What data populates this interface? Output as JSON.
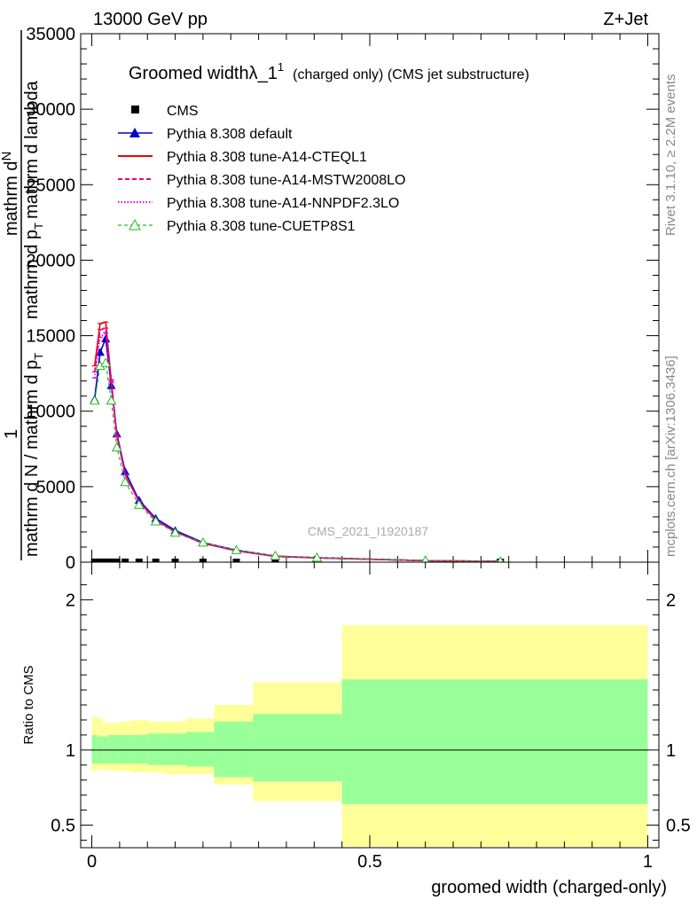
{
  "header": {
    "energy_label": "13000 GeV pp",
    "process_label": "Z+Jet"
  },
  "side_labels": {
    "rivet": "Rivet 3.1.10, ≥ 2.2M events",
    "mcplots": "mcplots.cern.ch [arXiv:1306.3436]"
  },
  "chart_data": [
    {
      "panel": "main",
      "type": "line",
      "title_main": "Groomed width",
      "title_lambda": "λ_1",
      "title_sup": "1",
      "title_suffix": "(charged only) (CMS jet substructure)",
      "ylabel_line1": "mathrm d",
      "ylabel_n": "N",
      "ylabel_line2": "mathrm d p",
      "ylabel_line2b": "mathrm d lambda",
      "ylabel_frac_num": "1",
      "ylabel_frac_den": "mathrm d N / mathrm d p",
      "ylabel_frac_den_b": "mathrm d p",
      "ylabel_t": "T",
      "ylim": [
        0,
        35000
      ],
      "xlim": [
        -0.02,
        1.02
      ],
      "yticks": [
        0,
        5000,
        10000,
        15000,
        20000,
        25000,
        30000,
        35000
      ],
      "yticklabels": [
        "0",
        "5000",
        "10000",
        "15000",
        "20000",
        "25000",
        "30000",
        "35000"
      ],
      "watermark": "CMS_2021_I1920187",
      "legend_position": "top-left",
      "series": [
        {
          "name": "CMS",
          "style": "data-square",
          "color": "#000000",
          "x": [
            0.005,
            0.015,
            0.025,
            0.035,
            0.045,
            0.06,
            0.085,
            0.115,
            0.15,
            0.2,
            0.26,
            0.33,
            0.735
          ],
          "y": [
            5,
            6,
            6,
            6,
            5,
            5,
            4,
            3,
            2,
            1.5,
            1,
            0.6,
            0.1
          ]
        },
        {
          "name": "Pythia 8.308 default",
          "style": "line-triangle",
          "color": "#0000cc",
          "x": [
            0.005,
            0.015,
            0.025,
            0.035,
            0.045,
            0.06,
            0.085,
            0.115,
            0.15,
            0.2,
            0.26,
            0.33,
            0.405,
            0.6,
            0.735
          ],
          "y": [
            10800,
            13900,
            14800,
            11700,
            8500,
            6000,
            4100,
            2900,
            2100,
            1300,
            800,
            400,
            300,
            100,
            50
          ]
        },
        {
          "name": "Pythia 8.308 tune-A14-CTEQL1",
          "style": "solid",
          "color": "#ee0000",
          "x": [
            0.005,
            0.015,
            0.025,
            0.035,
            0.045,
            0.06,
            0.085,
            0.115,
            0.15,
            0.2,
            0.26,
            0.33,
            0.405,
            0.6,
            0.735
          ],
          "y": [
            13000,
            15800,
            15900,
            12000,
            8400,
            5800,
            4000,
            2800,
            2000,
            1250,
            750,
            380,
            280,
            100,
            50
          ]
        },
        {
          "name": "Pythia 8.308 tune-A14-MSTW2008LO",
          "style": "dashed",
          "color": "#ee0077",
          "x": [
            0.005,
            0.015,
            0.025,
            0.035,
            0.045,
            0.06,
            0.085,
            0.115,
            0.15,
            0.2,
            0.26,
            0.33,
            0.405,
            0.6,
            0.735
          ],
          "y": [
            12600,
            15400,
            15500,
            12100,
            8400,
            5800,
            4000,
            2800,
            2000,
            1250,
            750,
            380,
            280,
            100,
            50
          ]
        },
        {
          "name": "Pythia 8.308 tune-A14-NNPDF2.3LO",
          "style": "dotted",
          "color": "#dd00dd",
          "x": [
            0.005,
            0.015,
            0.025,
            0.035,
            0.045,
            0.06,
            0.085,
            0.115,
            0.15,
            0.2,
            0.26,
            0.33,
            0.405,
            0.6,
            0.735
          ],
          "y": [
            12200,
            14900,
            15200,
            11900,
            8300,
            5800,
            4000,
            2800,
            2000,
            1250,
            750,
            380,
            280,
            100,
            50
          ]
        },
        {
          "name": "Pythia 8.308 tune-CUETP8S1",
          "style": "dashed-open-triangle",
          "color": "#22bb22",
          "x": [
            0.005,
            0.015,
            0.025,
            0.035,
            0.045,
            0.06,
            0.085,
            0.115,
            0.15,
            0.2,
            0.26,
            0.33,
            0.405,
            0.6,
            0.735
          ],
          "y": [
            10700,
            13000,
            13200,
            10700,
            7600,
            5300,
            3800,
            2700,
            1950,
            1300,
            800,
            420,
            300,
            110,
            50
          ]
        }
      ]
    },
    {
      "panel": "ratio",
      "type": "area",
      "ylabel": "Ratio to CMS",
      "ylim": [
        0.35,
        2.25
      ],
      "xlim": [
        -0.02,
        1.02
      ],
      "xlabel": "groomed width (charged-only)",
      "xticks": [
        0,
        0.5,
        1
      ],
      "xticklabels": [
        "0",
        "0.5",
        "1"
      ],
      "yticks": [
        0.5,
        1,
        2
      ],
      "yticklabels": [
        "0.5",
        "1",
        "2"
      ],
      "reference_line": 1,
      "bands": {
        "edges": [
          0,
          0.01,
          0.02,
          0.03,
          0.05,
          0.07,
          0.1,
          0.13,
          0.17,
          0.22,
          0.29,
          0.45,
          1.0
        ],
        "green_upper": [
          1.1,
          1.09,
          1.09,
          1.1,
          1.1,
          1.1,
          1.11,
          1.11,
          1.12,
          1.19,
          1.24,
          1.47
        ],
        "green_lower": [
          0.91,
          0.91,
          0.91,
          0.91,
          0.91,
          0.91,
          0.9,
          0.9,
          0.89,
          0.82,
          0.79,
          0.64
        ],
        "yellow_upper": [
          1.22,
          1.21,
          1.18,
          1.18,
          1.19,
          1.2,
          1.19,
          1.19,
          1.21,
          1.3,
          1.45,
          1.83
        ],
        "yellow_lower": [
          0.86,
          0.87,
          0.87,
          0.86,
          0.86,
          0.85,
          0.85,
          0.84,
          0.84,
          0.77,
          0.66,
          0.35
        ],
        "green_color": "#99ff99",
        "yellow_color": "#ffff99"
      }
    }
  ]
}
